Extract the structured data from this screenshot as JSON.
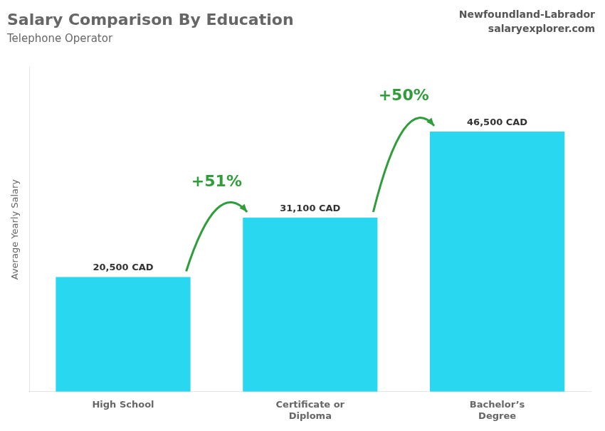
{
  "chart_data": {
    "type": "bar",
    "title": "Salary Comparison By Education",
    "subtitle": "Telephone Operator",
    "annotations": [
      "Newfoundland-Labrador",
      "salaryexplorer.com"
    ],
    "ylabel": "Average Yearly Salary",
    "categories": [
      "High School",
      "Certificate or\nDiploma",
      "Bachelor’s\nDegree"
    ],
    "values": [
      20500,
      31100,
      46500
    ],
    "value_labels": [
      "20,500 CAD",
      "31,100 CAD",
      "46,500 CAD"
    ],
    "change_labels": [
      "+51%",
      "+50%"
    ],
    "color": "#29d8f0",
    "ylim": [
      0,
      58000
    ],
    "grid": false,
    "tick_labels": "x",
    "data_labels": true
  }
}
